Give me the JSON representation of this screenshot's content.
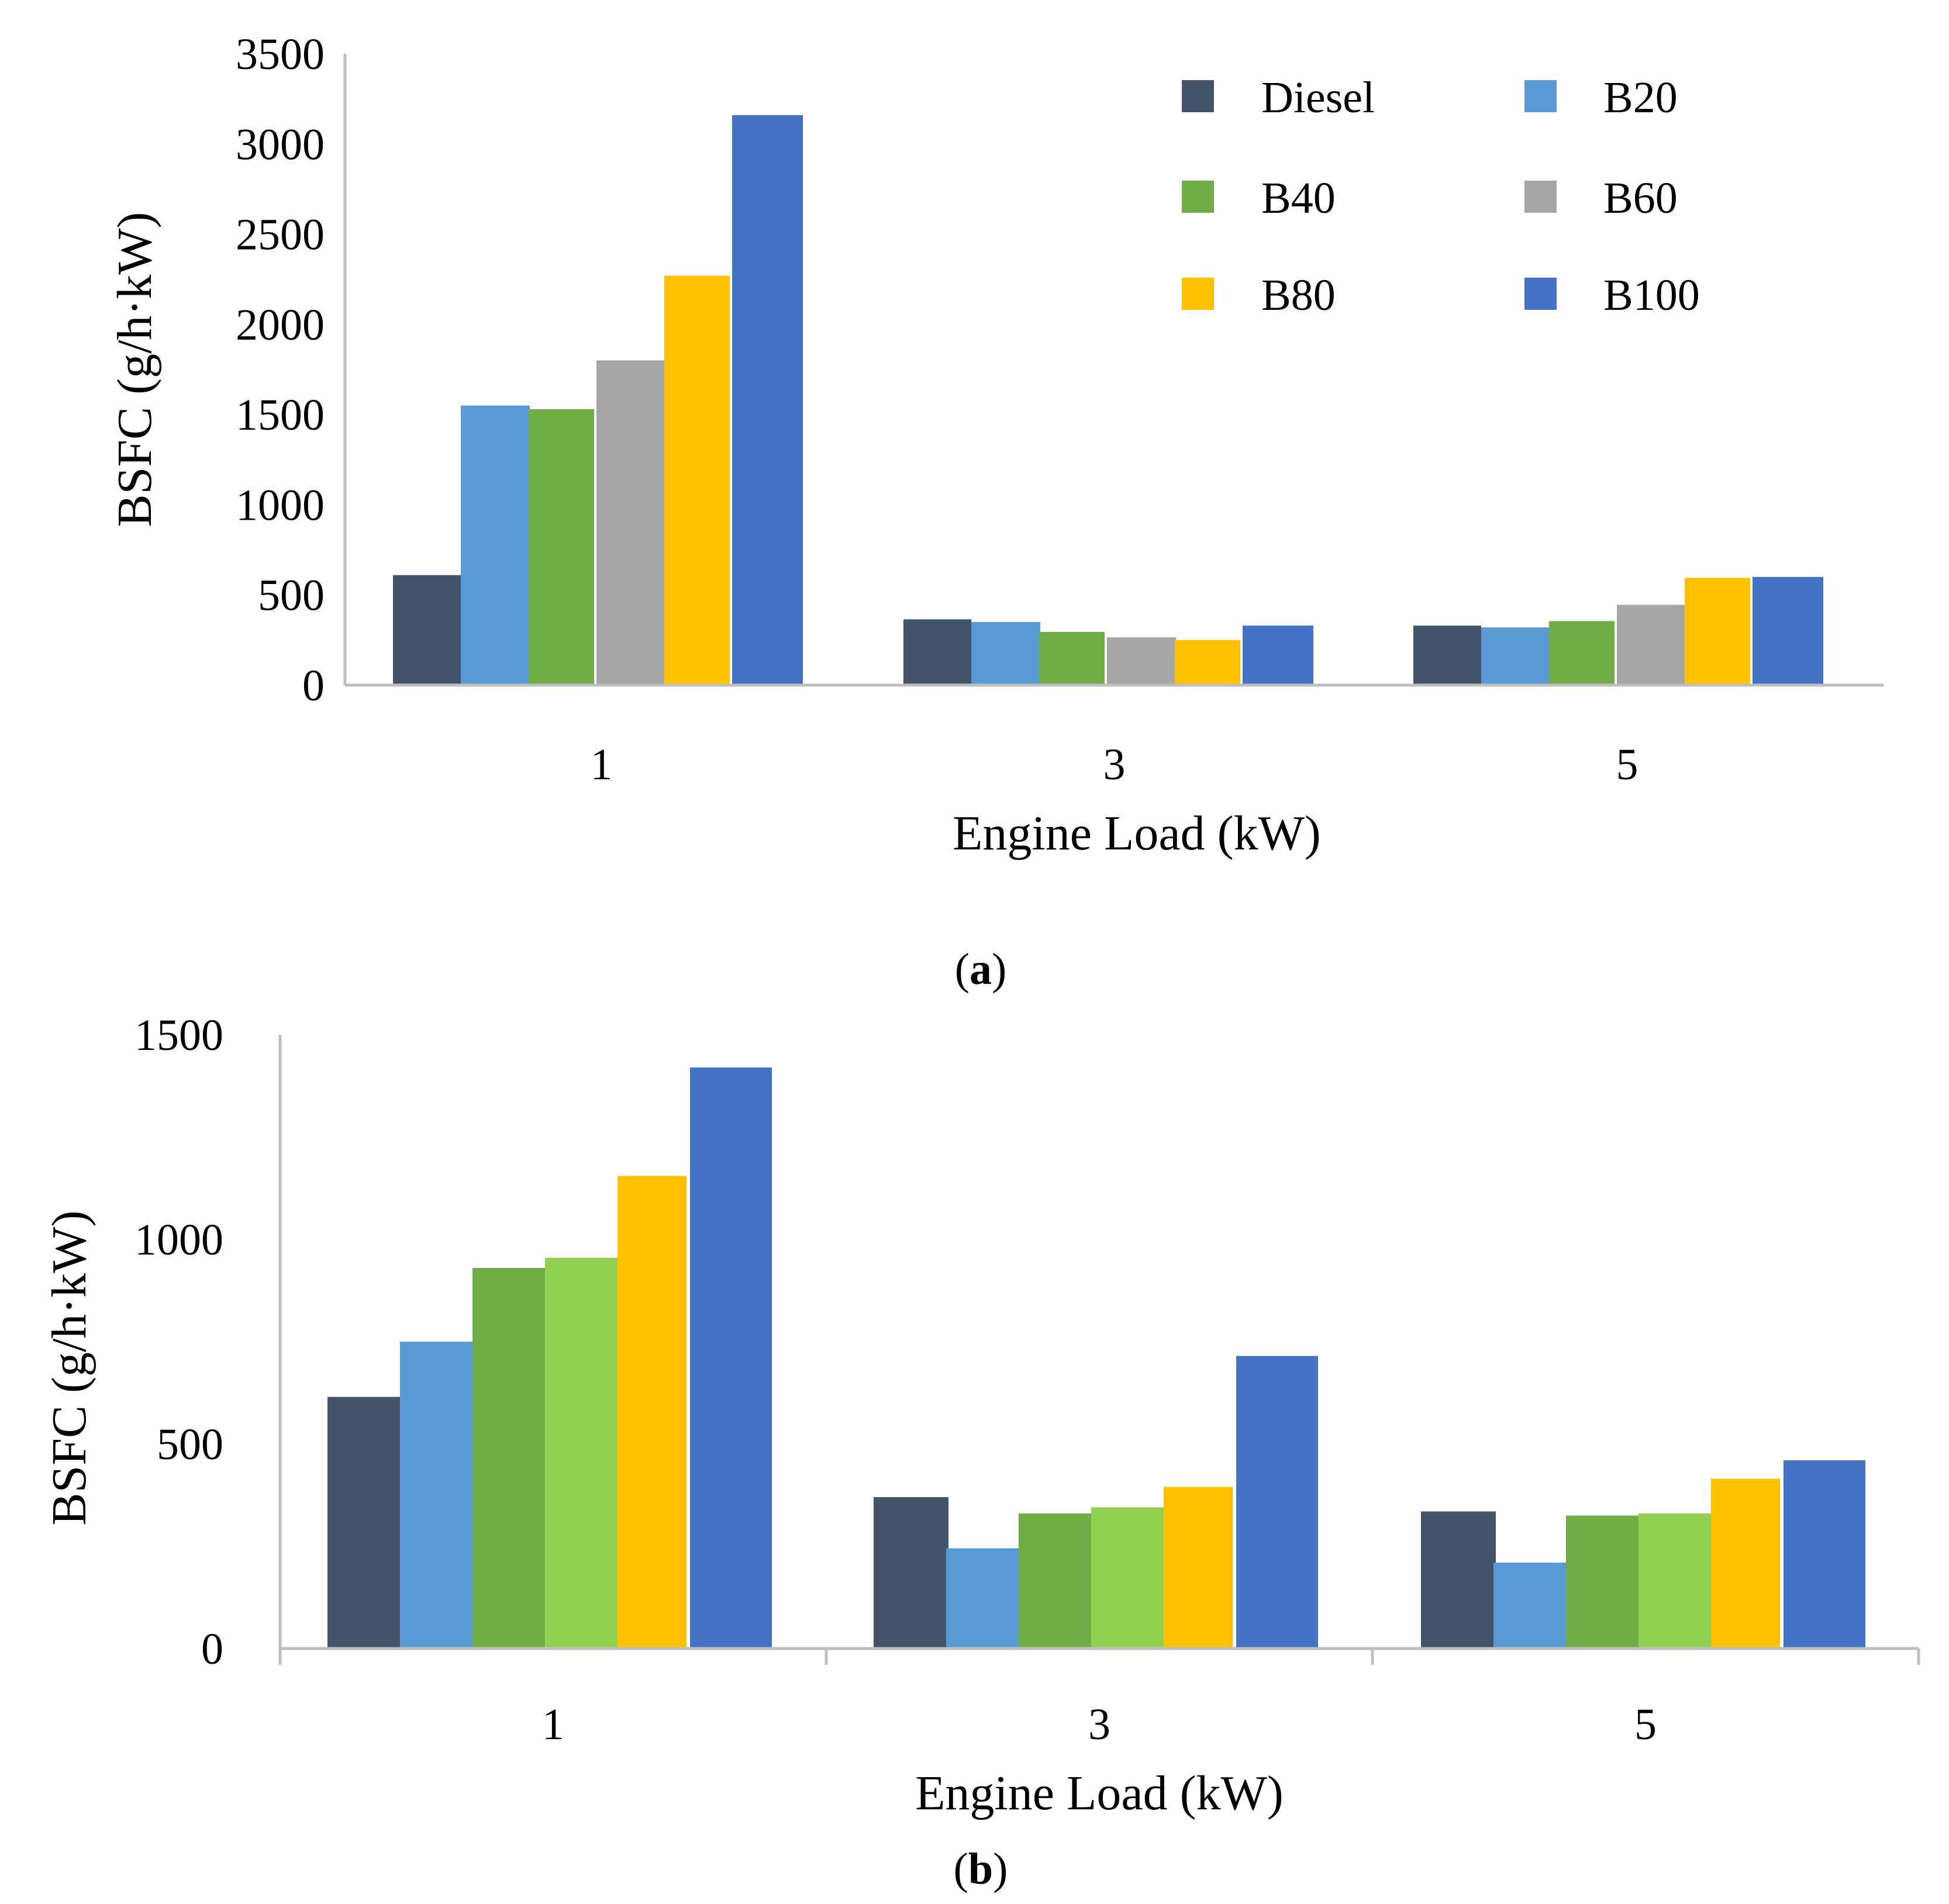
{
  "colors": {
    "Diesel": "#44546A",
    "B20": "#5B9BD5",
    "B40": "#70AD47",
    "B60": "#A5A5A5",
    "B80": "#FFC000",
    "B100": "#4472C4",
    "B60_b": "#92D050",
    "axis": "#BFBFBF"
  },
  "chart_data": [
    {
      "type": "bar",
      "panel_label": "a",
      "title": "",
      "xlabel": "Engine Load (kW)",
      "ylabel": "BSFC (g/h·kW)",
      "categories": [
        "1",
        "3",
        "5"
      ],
      "ylim": [
        0,
        3500
      ],
      "yticks": [
        0,
        500,
        1000,
        1500,
        2000,
        2500,
        3000,
        3500
      ],
      "grid": false,
      "legend_position": "top-right",
      "series": [
        {
          "name": "Diesel",
          "values": [
            610,
            365,
            330
          ]
        },
        {
          "name": "B20",
          "values": [
            1550,
            350,
            320
          ]
        },
        {
          "name": "B40",
          "values": [
            1530,
            295,
            355
          ]
        },
        {
          "name": "B60",
          "values": [
            1800,
            265,
            445
          ]
        },
        {
          "name": "B80",
          "values": [
            2270,
            250,
            595
          ]
        },
        {
          "name": "B100",
          "values": [
            3160,
            330,
            600
          ]
        }
      ]
    },
    {
      "type": "bar",
      "panel_label": "b",
      "title": "",
      "xlabel": "Engine Load (kW)",
      "ylabel": "BSFC (g/h·kW)",
      "categories": [
        "1",
        "3",
        "5"
      ],
      "ylim": [
        0,
        1500
      ],
      "yticks": [
        0,
        500,
        1000,
        1500
      ],
      "grid": false,
      "legend_position": "none",
      "series": [
        {
          "name": "Diesel",
          "values": [
            615,
            370,
            335
          ]
        },
        {
          "name": "B20",
          "values": [
            750,
            245,
            210
          ]
        },
        {
          "name": "B40",
          "values": [
            930,
            330,
            325
          ]
        },
        {
          "name": "B60",
          "values": [
            955,
            345,
            330
          ]
        },
        {
          "name": "B80",
          "values": [
            1155,
            395,
            415
          ]
        },
        {
          "name": "B100",
          "values": [
            1420,
            715,
            460
          ]
        }
      ]
    }
  ]
}
